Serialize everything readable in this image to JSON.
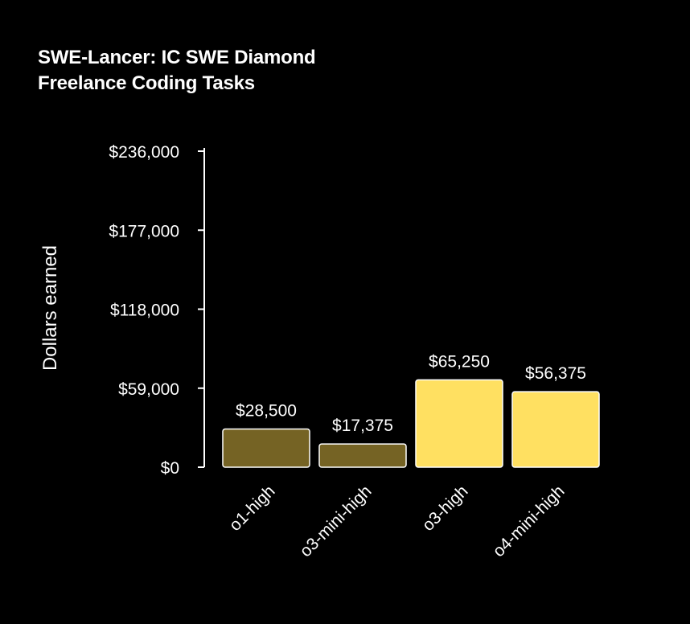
{
  "chart_data": {
    "type": "bar",
    "title_lines": [
      "SWE-Lancer: IC SWE Diamond",
      "Freelance Coding Tasks"
    ],
    "ylabel": "Dollars earned",
    "xlabel": "",
    "ylim": [
      0,
      236000
    ],
    "y_ticks": [
      0,
      59000,
      118000,
      177000,
      236000
    ],
    "y_tick_labels": [
      "$0",
      "$59,000",
      "$118,000",
      "$177,000",
      "$236,000"
    ],
    "categories": [
      "o1-high",
      "o3-mini-high",
      "o3-high",
      "o4-mini-high"
    ],
    "values": [
      28500,
      17375,
      65250,
      56375
    ],
    "value_labels": [
      "$28,500",
      "$17,375",
      "$65,250",
      "$56,375"
    ],
    "colors": [
      "#756324",
      "#756324",
      "#FFE061",
      "#FFE061"
    ],
    "grid": false,
    "legend": "none"
  }
}
